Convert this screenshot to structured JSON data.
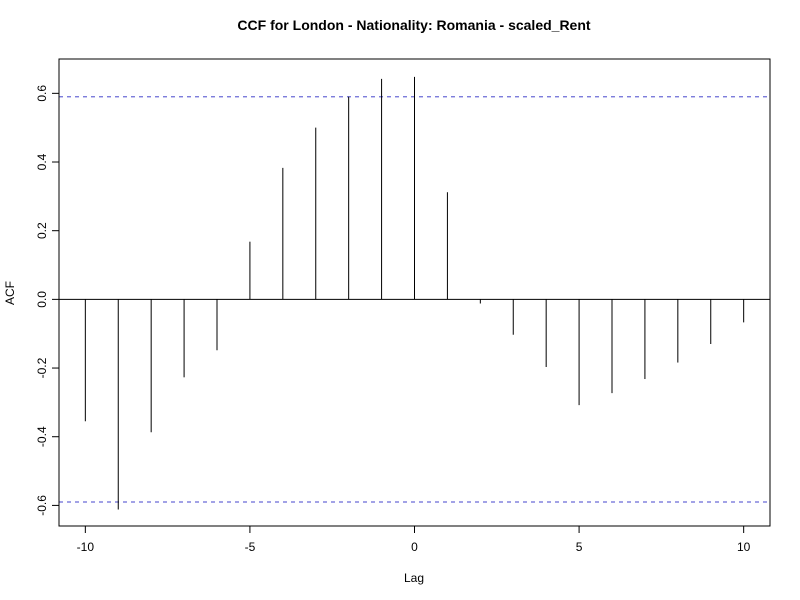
{
  "chart_data": {
    "type": "bar",
    "title": "CCF for London - Nationality: Romania - scaled_Rent",
    "xlabel": "Lag",
    "ylabel": "ACF",
    "xlim": [
      -10.8,
      10.8
    ],
    "ylim": [
      -0.66,
      0.7
    ],
    "x_ticks": [
      -10,
      -5,
      0,
      5,
      10
    ],
    "y_ticks": [
      -0.6,
      -0.4,
      -0.2,
      0.0,
      0.2,
      0.4,
      0.6
    ],
    "x_tick_labels": [
      "-10",
      "-5",
      "0",
      "5",
      "10"
    ],
    "y_tick_labels": [
      "-0.6",
      "-0.4",
      "-0.2",
      "0.0",
      "0.2",
      "0.4",
      "0.6"
    ],
    "confidence_bound": 0.59,
    "grid": false,
    "colors": {
      "bars": "#000000",
      "confidence": "#6b6bd6",
      "zero_line": "#000000"
    },
    "lags": [
      -10,
      -9,
      -8,
      -7,
      -6,
      -5,
      -4,
      -3,
      -2,
      -1,
      0,
      1,
      2,
      3,
      4,
      5,
      6,
      7,
      8,
      9,
      10
    ],
    "values": [
      -0.355,
      -0.612,
      -0.387,
      -0.227,
      -0.148,
      0.168,
      0.383,
      0.5,
      0.59,
      0.642,
      0.648,
      0.312,
      -0.012,
      -0.103,
      -0.197,
      -0.308,
      -0.273,
      -0.232,
      -0.184,
      -0.13,
      -0.067
    ]
  }
}
